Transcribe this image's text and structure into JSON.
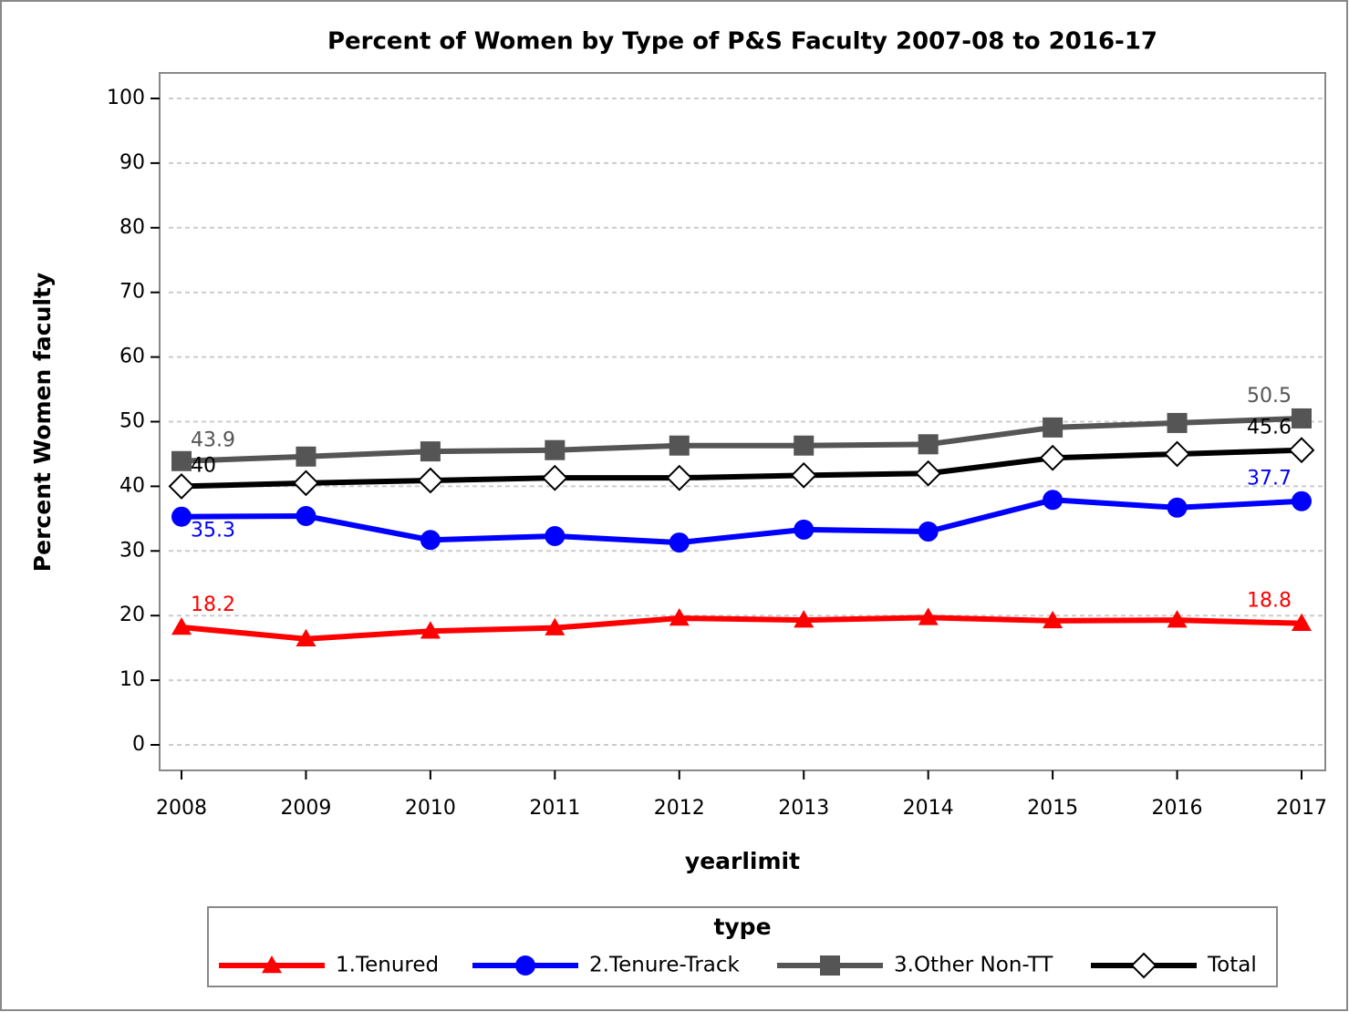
{
  "chart_data": {
    "type": "line",
    "title": "Percent of Women by Type of P&S Faculty 2007-08 to 2016-17",
    "x_label": "yearlimit",
    "y_label": "Percent Women faculty",
    "x": [
      2008,
      2009,
      2010,
      2011,
      2012,
      2013,
      2014,
      2015,
      2016,
      2017
    ],
    "xticks": [
      2008,
      2009,
      2010,
      2011,
      2012,
      2013,
      2014,
      2015,
      2016,
      2017
    ],
    "ylim": [
      0,
      100
    ],
    "yticks": [
      0,
      10,
      20,
      30,
      40,
      50,
      60,
      70,
      80,
      90,
      100
    ],
    "grid": true,
    "legend_title": "type",
    "legend_position": "bottom",
    "series": [
      {
        "name": "1.Tenured",
        "color": "#ff0000",
        "marker": "triangle",
        "values": [
          18.2,
          16.4,
          17.6,
          18.1,
          19.6,
          19.3,
          19.7,
          19.2,
          19.3,
          18.8
        ]
      },
      {
        "name": "2.Tenure-Track",
        "color": "#0000ff",
        "marker": "circle",
        "values": [
          35.3,
          35.4,
          31.7,
          32.3,
          31.3,
          33.3,
          33.0,
          37.9,
          36.7,
          37.7
        ]
      },
      {
        "name": "3.Other Non-TT",
        "color": "#555555",
        "marker": "square",
        "values": [
          43.9,
          44.6,
          45.4,
          45.6,
          46.3,
          46.3,
          46.5,
          49.1,
          49.8,
          50.5
        ]
      },
      {
        "name": "Total",
        "color": "#000000",
        "marker": "diamond",
        "values": [
          40,
          40.5,
          40.9,
          41.3,
          41.3,
          41.7,
          42.0,
          44.4,
          45.0,
          45.6
        ]
      }
    ]
  }
}
